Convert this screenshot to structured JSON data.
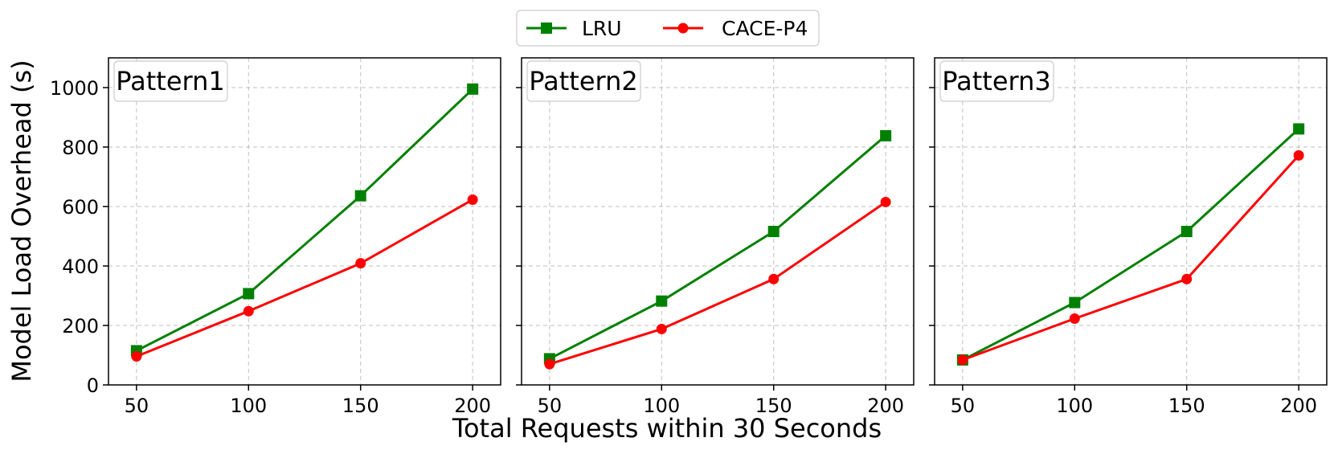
{
  "colors": {
    "LRU": "#008000",
    "CACE-P4": "#ff0000"
  },
  "legend": {
    "placement": "top-center",
    "entries": [
      "LRU",
      "CACE-P4"
    ]
  },
  "chart_data": {
    "type": "line",
    "xlabel": "Total Requests within 30 Seconds",
    "ylabel": "Model Load Overhead (s)",
    "ylim": [
      0,
      1100
    ],
    "xlim": [
      37.5,
      212.5
    ],
    "xticks": [
      50,
      100,
      150,
      200
    ],
    "yticks": [
      0,
      200,
      400,
      600,
      800,
      1000
    ],
    "grid": true,
    "shared_y": true,
    "panels": [
      {
        "title": "Pattern1",
        "x": [
          50,
          100,
          150,
          200
        ],
        "series": [
          {
            "name": "LRU",
            "marker": "square",
            "values": [
              115,
              307,
              636,
              995
            ]
          },
          {
            "name": "CACE-P4",
            "marker": "circle",
            "values": [
              96,
              248,
              409,
              623
            ]
          }
        ]
      },
      {
        "title": "Pattern2",
        "x": [
          50,
          100,
          150,
          200
        ],
        "series": [
          {
            "name": "LRU",
            "marker": "square",
            "values": [
              88,
              282,
              516,
              838
            ]
          },
          {
            "name": "CACE-P4",
            "marker": "circle",
            "values": [
              70,
              188,
              356,
              615
            ]
          }
        ]
      },
      {
        "title": "Pattern3",
        "x": [
          50,
          100,
          150,
          200
        ],
        "series": [
          {
            "name": "LRU",
            "marker": "square",
            "values": [
              84,
              277,
              516,
              861
            ]
          },
          {
            "name": "CACE-P4",
            "marker": "circle",
            "values": [
              84,
              223,
              356,
              772
            ]
          }
        ]
      }
    ]
  }
}
